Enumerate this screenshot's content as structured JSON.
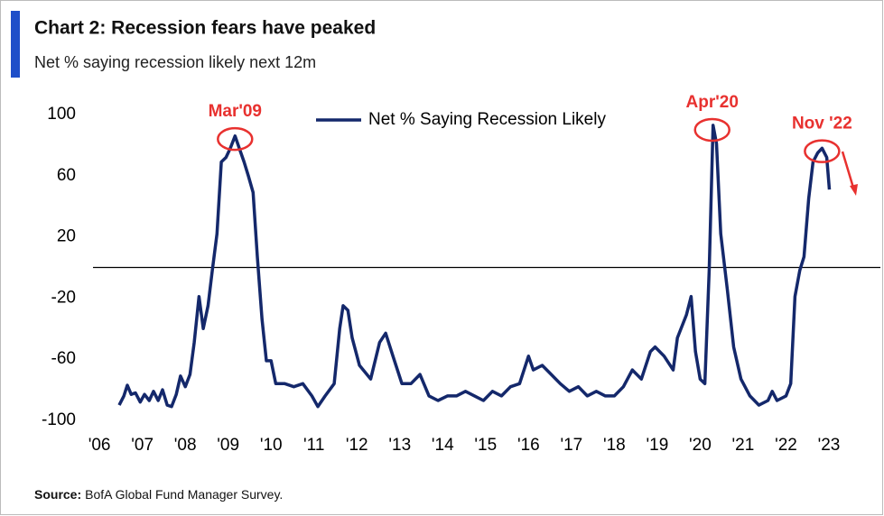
{
  "chart_data": {
    "type": "line",
    "title": "Chart 2: Recession fears have peaked",
    "subtitle": "Net % saying recession likely next 12m",
    "source_label": "Source:",
    "source": "BofA Global Fund Manager Survey.",
    "xlim": [
      2005.85,
      2024.2
    ],
    "xticks": [
      {
        "value": 2006,
        "label": "'06"
      },
      {
        "value": 2007,
        "label": "'07"
      },
      {
        "value": 2008,
        "label": "'08"
      },
      {
        "value": 2009,
        "label": "'09"
      },
      {
        "value": 2010,
        "label": "'10"
      },
      {
        "value": 2011,
        "label": "'11"
      },
      {
        "value": 2012,
        "label": "'12"
      },
      {
        "value": 2013,
        "label": "'13"
      },
      {
        "value": 2014,
        "label": "'14"
      },
      {
        "value": 2015,
        "label": "'15"
      },
      {
        "value": 2016,
        "label": "'16"
      },
      {
        "value": 2017,
        "label": "'17"
      },
      {
        "value": 2018,
        "label": "'18"
      },
      {
        "value": 2019,
        "label": "'19"
      },
      {
        "value": 2020,
        "label": "'20"
      },
      {
        "value": 2021,
        "label": "'21"
      },
      {
        "value": 2022,
        "label": "'22"
      },
      {
        "value": 2023,
        "label": "'23"
      }
    ],
    "ylim": [
      -100,
      100
    ],
    "yticks": [
      100,
      60,
      20,
      -20,
      -60,
      -100
    ],
    "reference_line": 0,
    "legend": "top",
    "grid": false,
    "x": [
      2006.46,
      2006.57,
      2006.65,
      2006.74,
      2006.84,
      2006.95,
      2007.05,
      2007.16,
      2007.26,
      2007.37,
      2007.47,
      2007.58,
      2007.68,
      2007.79,
      2007.89,
      2008.0,
      2008.11,
      2008.21,
      2008.32,
      2008.42,
      2008.53,
      2008.63,
      2008.74,
      2008.84,
      2008.95,
      2009.05,
      2009.16,
      2009.26,
      2009.37,
      2009.47,
      2009.58,
      2009.68,
      2009.79,
      2009.89,
      2010.0,
      2010.11,
      2010.32,
      2010.53,
      2010.74,
      2010.95,
      2011.09,
      2011.26,
      2011.47,
      2011.6,
      2011.68,
      2011.79,
      2011.89,
      2012.06,
      2012.32,
      2012.53,
      2012.67,
      2012.84,
      2013.05,
      2013.26,
      2013.47,
      2013.68,
      2013.89,
      2014.11,
      2014.32,
      2014.53,
      2014.74,
      2014.95,
      2015.16,
      2015.37,
      2015.58,
      2015.79,
      2016.0,
      2016.11,
      2016.32,
      2016.53,
      2016.74,
      2016.95,
      2017.16,
      2017.37,
      2017.58,
      2017.79,
      2018.0,
      2018.21,
      2018.42,
      2018.63,
      2018.84,
      2018.95,
      2019.16,
      2019.37,
      2019.47,
      2019.68,
      2019.79,
      2019.89,
      2020.0,
      2020.11,
      2020.21,
      2020.3,
      2020.38,
      2020.48,
      2020.63,
      2020.78,
      2020.95,
      2021.16,
      2021.37,
      2021.58,
      2021.68,
      2021.79,
      2022.0,
      2022.11,
      2022.21,
      2022.32,
      2022.42,
      2022.53,
      2022.63,
      2022.74,
      2022.84,
      2022.95,
      2023.01
    ],
    "series": [
      {
        "name": "Net % Saying Recession Likely",
        "color": "#14286b",
        "values": [
          -90,
          -84,
          -77,
          -83,
          -82,
          -88,
          -83,
          -87,
          -81,
          -87,
          -80,
          -90,
          -91,
          -83,
          -71,
          -78,
          -70,
          -49,
          -19,
          -40,
          -25,
          -2,
          22,
          69,
          72,
          78,
          86,
          78,
          69,
          60,
          49,
          7,
          -34,
          -61,
          -61,
          -76,
          -76,
          -78,
          -76,
          -84,
          -91,
          -84,
          -76,
          -40,
          -25,
          -28,
          -46,
          -64,
          -73,
          -49,
          -43,
          -58,
          -76,
          -76,
          -70,
          -84,
          -87,
          -84,
          -84,
          -81,
          -84,
          -87,
          -81,
          -84,
          -78,
          -76,
          -58,
          -67,
          -64,
          -70,
          -76,
          -81,
          -78,
          -84,
          -81,
          -84,
          -84,
          -78,
          -67,
          -73,
          -55,
          -52,
          -58,
          -67,
          -46,
          -31,
          -19,
          -55,
          -73,
          -76,
          -2,
          93,
          81,
          22,
          -14,
          -52,
          -73,
          -84,
          -90,
          -87,
          -81,
          -87,
          -84,
          -76,
          -19,
          -2,
          7,
          45,
          69,
          75,
          78,
          72,
          51
        ]
      }
    ],
    "annotations": [
      {
        "text": "Mar'09",
        "x": 2009.16,
        "y": 84,
        "color": "#e8312f"
      },
      {
        "text": "Apr'20",
        "x": 2020.28,
        "y": 90,
        "color": "#e8312f"
      },
      {
        "text": "Nov '22",
        "x": 2022.84,
        "y": 76,
        "color": "#e8312f"
      }
    ]
  }
}
